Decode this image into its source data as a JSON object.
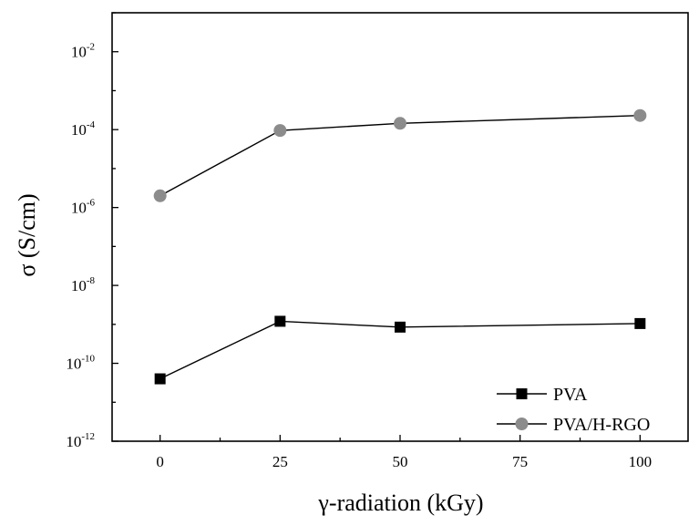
{
  "chart_data": {
    "type": "line",
    "xlabel": "γ-radiation (kGy)",
    "ylabel": "σ (S/cm)",
    "yscale": "log",
    "xlim": [
      -10,
      110
    ],
    "ylim_exponents": [
      -12,
      -1
    ],
    "x_ticks": [
      "0",
      "25",
      "50",
      "75",
      "100"
    ],
    "x_tick_values": [
      0,
      25,
      50,
      75,
      100
    ],
    "y_tick_labels": [
      {
        "base": "10",
        "exp": "-12",
        "value_exp": -12
      },
      {
        "base": "10",
        "exp": "-10",
        "value_exp": -10
      },
      {
        "base": "10",
        "exp": "-8",
        "value_exp": -8
      },
      {
        "base": "10",
        "exp": "-6",
        "value_exp": -6
      },
      {
        "base": "10",
        "exp": "-4",
        "value_exp": -4
      },
      {
        "base": "10",
        "exp": "-2",
        "value_exp": -2
      }
    ],
    "legend_position": "bottom-right",
    "series": [
      {
        "name": "PVA",
        "marker": "square",
        "color": "#000000",
        "x": [
          0,
          25,
          50,
          100
        ],
        "y": [
          4e-11,
          1.2e-09,
          8.5e-10,
          1.05e-09
        ]
      },
      {
        "name": "PVA/H-RGO",
        "marker": "circle",
        "color": "#8c8c8c",
        "x": [
          0,
          25,
          50,
          100
        ],
        "y": [
          2e-06,
          9.5e-05,
          0.000145,
          0.00023
        ]
      }
    ]
  }
}
